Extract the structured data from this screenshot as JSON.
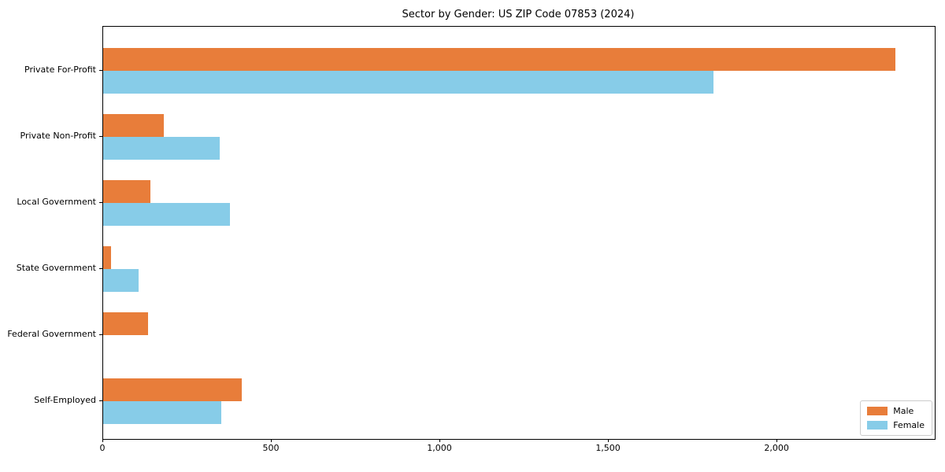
{
  "figure": {
    "background": "#ffffff",
    "axis_color": "#000000"
  },
  "chart_data": {
    "type": "bar",
    "orientation": "horizontal",
    "title": "Sector by Gender: US ZIP Code 07853 (2024)",
    "xlabel": "",
    "ylabel": "",
    "categories": [
      "Private For-Profit",
      "Private Non-Profit",
      "Local Government",
      "State Government",
      "Federal Government",
      "Self-Employed"
    ],
    "series": [
      {
        "name": "Male",
        "color": "#e87d3a",
        "values": [
          2350,
          180,
          140,
          24,
          134,
          410
        ]
      },
      {
        "name": "Female",
        "color": "#87cce8",
        "values": [
          1810,
          346,
          376,
          105,
          0,
          350
        ]
      }
    ],
    "xlim": [
      0,
      2467
    ],
    "xticks": [
      {
        "value": 0,
        "label": "0"
      },
      {
        "value": 500,
        "label": "500"
      },
      {
        "value": 1000,
        "label": "1,000"
      },
      {
        "value": 1500,
        "label": "1,500"
      },
      {
        "value": 2000,
        "label": "2,000"
      }
    ],
    "grid": false,
    "legend": {
      "position": "lower right",
      "entries": [
        "Male",
        "Female"
      ]
    }
  }
}
